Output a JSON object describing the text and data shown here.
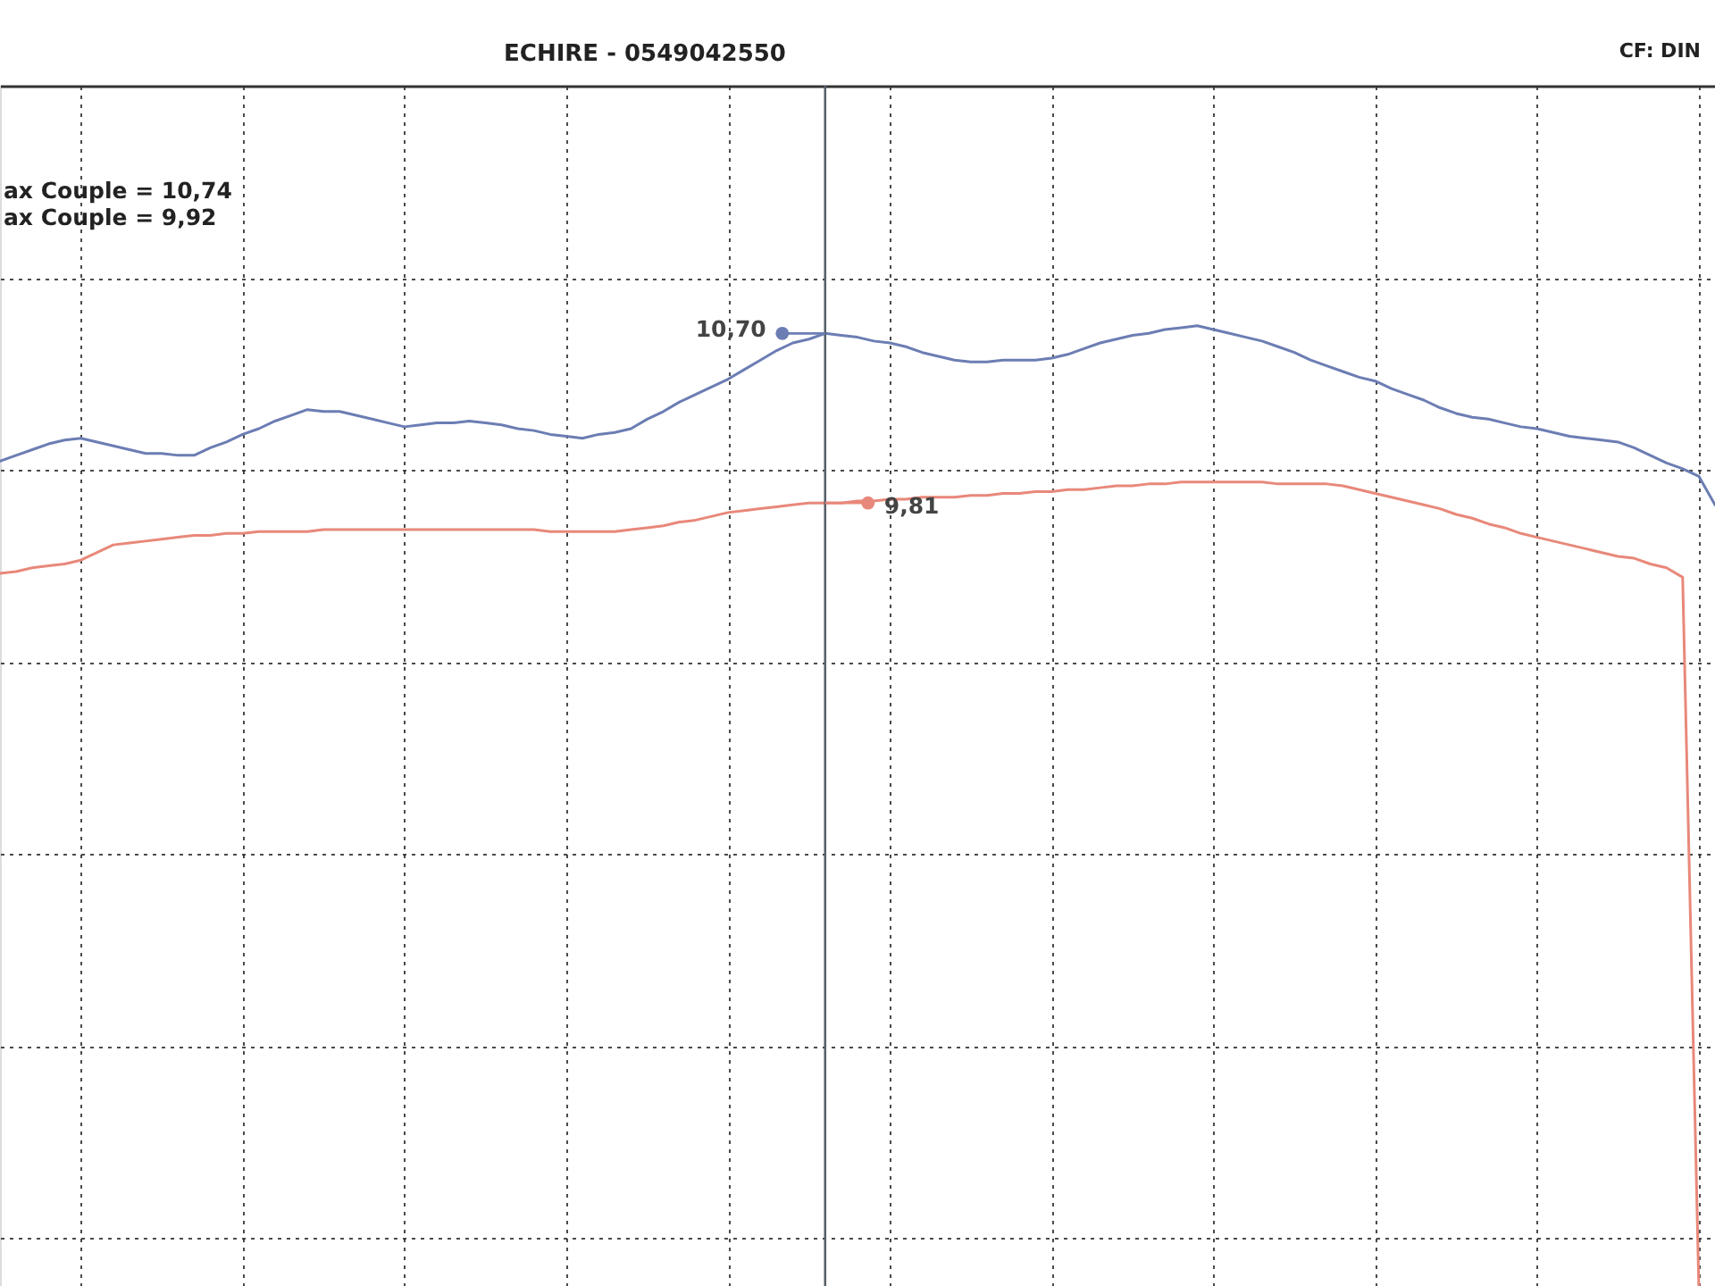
{
  "chart_data": {
    "type": "line",
    "title": "ECHIRE - 0549042550",
    "annotations": [
      "ax Couple = 10,74",
      "ax Couple = 9,92",
      "CF: DIN"
    ],
    "categories": [
      null,
      null,
      null,
      null,
      null,
      null,
      null,
      null,
      null,
      null,
      null,
      null,
      null,
      null,
      null,
      null,
      null,
      null,
      null,
      null,
      null,
      null,
      null,
      null,
      null,
      null,
      null,
      null,
      null,
      null,
      null,
      null,
      null,
      null,
      null,
      null,
      null,
      null,
      null,
      null,
      null,
      null,
      null,
      null,
      null,
      null,
      null,
      null,
      null,
      null,
      null,
      null,
      null,
      null,
      null,
      null,
      null,
      null,
      null,
      null,
      null,
      null,
      null,
      null,
      null,
      null,
      null,
      null,
      null,
      null,
      null,
      null,
      null,
      null,
      null,
      null,
      null,
      null,
      null,
      null,
      null,
      null,
      null,
      null,
      null,
      null,
      null,
      null,
      null,
      null,
      null,
      null,
      null,
      null,
      null,
      null,
      null,
      null,
      null,
      null,
      null,
      null,
      null,
      null,
      null,
      null,
      null
    ],
    "series": [
      {
        "color": "#6b7db3",
        "values": [
          10.03,
          10.06,
          10.09,
          10.12,
          10.14,
          10.15,
          10.13,
          10.11,
          10.09,
          10.07,
          10.07,
          10.06,
          10.06,
          10.1,
          10.13,
          10.17,
          10.2,
          10.24,
          10.27,
          10.3,
          10.29,
          10.29,
          10.27,
          10.25,
          10.23,
          10.21,
          10.22,
          10.23,
          10.23,
          10.24,
          10.23,
          10.22,
          10.2,
          10.19,
          10.17,
          10.16,
          10.15,
          10.17,
          10.18,
          10.2,
          10.25,
          10.29,
          10.34,
          10.38,
          10.42,
          10.46,
          10.51,
          10.56,
          10.61,
          10.65,
          10.67,
          10.7,
          10.69,
          10.68,
          10.66,
          10.65,
          10.63,
          10.6,
          10.58,
          10.56,
          10.55,
          10.55,
          10.56,
          10.56,
          10.56,
          10.57,
          10.59,
          10.62,
          10.65,
          10.67,
          10.69,
          10.7,
          10.72,
          10.73,
          10.74,
          10.72,
          10.7,
          10.68,
          10.66,
          10.63,
          10.6,
          10.56,
          10.53,
          10.5,
          10.47,
          10.45,
          10.41,
          10.38,
          10.35,
          10.31,
          10.28,
          10.26,
          10.25,
          10.23,
          10.21,
          10.2,
          10.18,
          10.16,
          10.15,
          10.14,
          10.13,
          10.1,
          10.06,
          10.02,
          9.99,
          9.95,
          9.8
        ],
        "value_labels": [
          null,
          null,
          null,
          null,
          null,
          null,
          null,
          null,
          null,
          null,
          null,
          null,
          null,
          null,
          null,
          null,
          null,
          null,
          null,
          null,
          null,
          null,
          null,
          null,
          null,
          null,
          null,
          null,
          null,
          null,
          null,
          null,
          null,
          null,
          null,
          null,
          null,
          null,
          null,
          null,
          null,
          null,
          null,
          null,
          null,
          null,
          null,
          null,
          null,
          null,
          null,
          "10,70",
          null,
          null,
          null,
          null,
          null,
          null,
          null,
          null,
          null,
          null,
          null,
          null,
          null,
          null,
          null,
          null,
          null,
          null,
          null,
          null,
          null,
          null,
          null,
          null,
          null,
          null,
          null,
          null,
          null,
          null,
          null,
          null,
          null,
          null,
          null,
          null,
          null,
          null,
          null,
          null,
          null,
          null,
          null,
          null,
          null,
          null,
          null,
          null,
          null,
          null,
          null,
          null,
          null,
          null,
          null
        ]
      },
      {
        "color": "#e8887a",
        "values": [
          9.44,
          9.45,
          9.47,
          9.48,
          9.49,
          9.51,
          9.55,
          9.59,
          9.6,
          9.61,
          9.62,
          9.63,
          9.64,
          9.64,
          9.65,
          9.65,
          9.66,
          9.66,
          9.66,
          9.66,
          9.67,
          9.67,
          9.67,
          9.67,
          9.67,
          9.67,
          9.67,
          9.67,
          9.67,
          9.67,
          9.67,
          9.67,
          9.67,
          9.67,
          9.66,
          9.66,
          9.66,
          9.66,
          9.66,
          9.67,
          9.68,
          9.69,
          9.71,
          9.72,
          9.74,
          9.76,
          9.77,
          9.78,
          9.79,
          9.8,
          9.81,
          9.81,
          9.81,
          9.82,
          9.82,
          9.83,
          9.83,
          9.84,
          9.84,
          9.84,
          9.85,
          9.85,
          9.86,
          9.86,
          9.87,
          9.87,
          9.88,
          9.88,
          9.89,
          9.9,
          9.9,
          9.91,
          9.91,
          9.92,
          9.92,
          9.92,
          9.92,
          9.92,
          9.92,
          9.91,
          9.91,
          9.91,
          9.91,
          9.9,
          9.88,
          9.86,
          9.84,
          9.82,
          9.8,
          9.78,
          9.75,
          9.73,
          9.7,
          9.68,
          9.65,
          9.63,
          9.61,
          9.59,
          9.57,
          9.55,
          9.53,
          9.52,
          9.49,
          9.47,
          9.42,
          5.7,
          null
        ],
        "value_labels": [
          null,
          null,
          null,
          null,
          null,
          null,
          null,
          null,
          null,
          null,
          null,
          null,
          null,
          null,
          null,
          null,
          null,
          null,
          null,
          null,
          null,
          null,
          null,
          null,
          null,
          null,
          null,
          null,
          null,
          null,
          null,
          null,
          null,
          null,
          null,
          null,
          null,
          null,
          null,
          null,
          null,
          null,
          null,
          null,
          null,
          null,
          null,
          null,
          null,
          null,
          null,
          "9,81",
          null,
          null,
          null,
          null,
          null,
          null,
          null,
          null,
          null,
          null,
          null,
          null,
          null,
          null,
          null,
          null,
          null,
          null,
          null,
          null,
          null,
          null,
          null,
          null,
          null,
          null,
          null,
          null,
          null,
          null,
          null,
          null,
          null,
          null,
          null,
          null,
          null,
          null,
          null,
          null,
          null,
          null,
          null,
          null,
          null,
          null,
          null,
          null,
          null,
          null,
          null,
          null,
          null,
          null,
          null
        ]
      }
    ],
    "grid": true
  }
}
